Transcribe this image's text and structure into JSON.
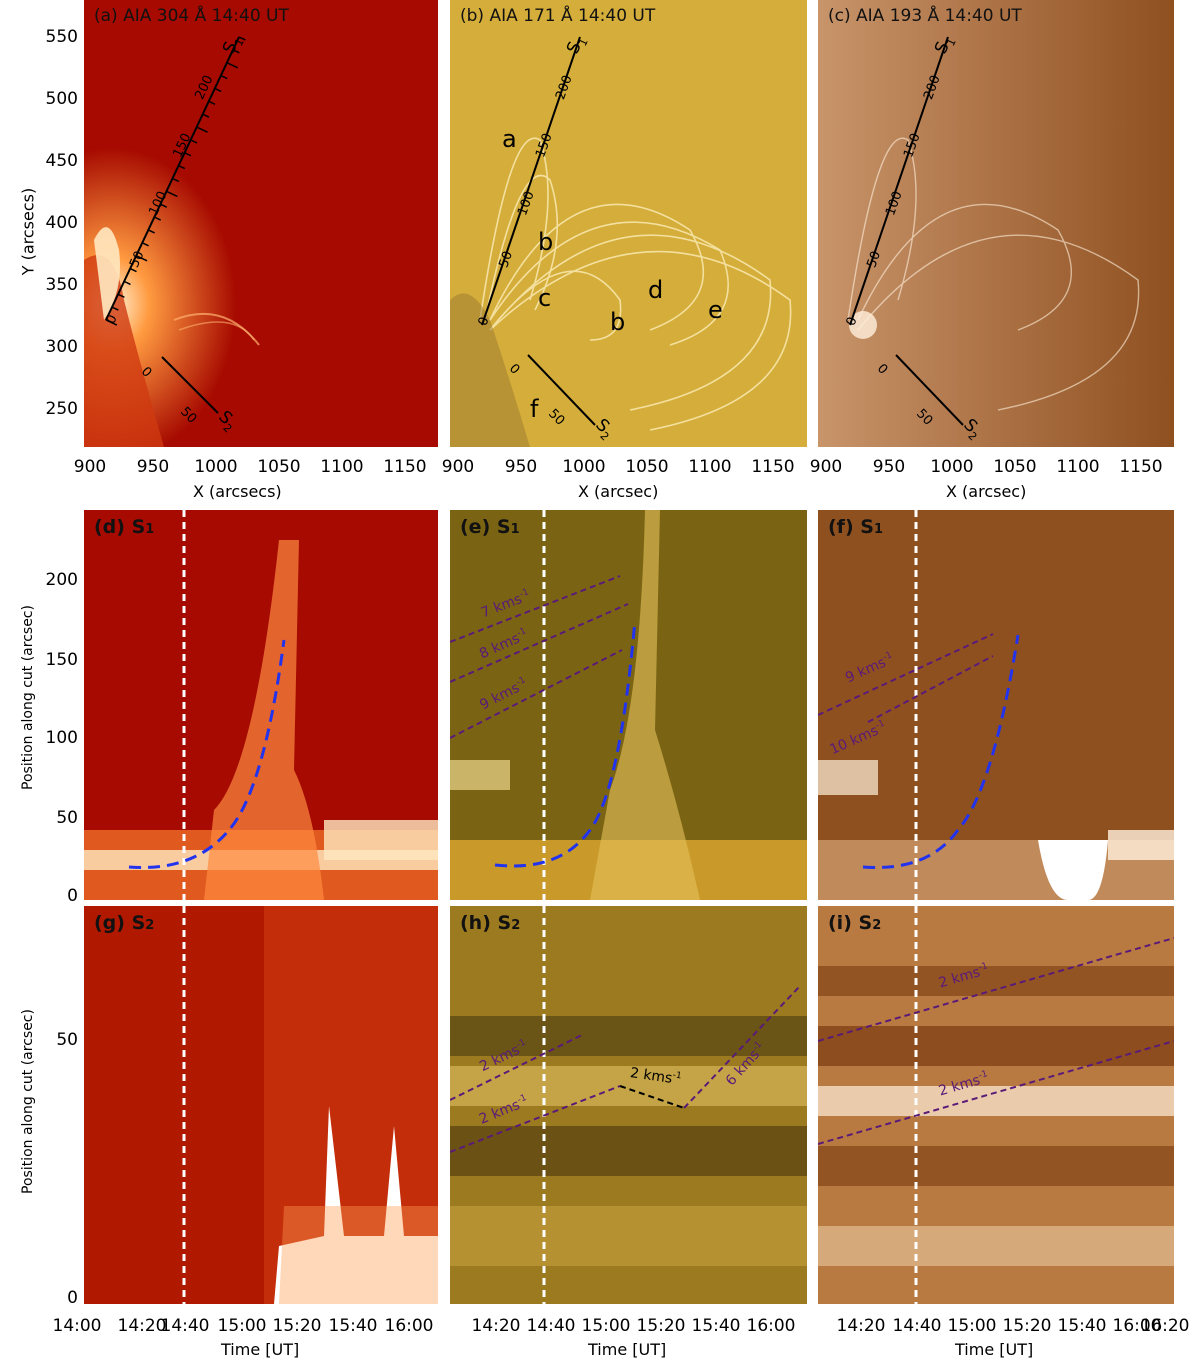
{
  "top_row": {
    "panels": [
      {
        "label": "(a) AIA 304 Å 14:40 UT",
        "cut1": "S",
        "cut1_sub": "1",
        "cut2": "S",
        "cut2_sub": "2"
      },
      {
        "label": "(b) AIA 171 Å 14:40 UT",
        "cut1": "S",
        "cut1_sub": "1",
        "cut2": "S",
        "cut2_sub": "2",
        "loop_labels": [
          "a",
          "b",
          "c",
          "b",
          "d",
          "e",
          "f"
        ]
      },
      {
        "label": "(c) AIA 193 Å 14:40 UT",
        "cut1": "S",
        "cut1_sub": "1",
        "cut2": "S",
        "cut2_sub": "2"
      }
    ],
    "s1_ticks": [
      "0",
      "50",
      "100",
      "150",
      "200"
    ],
    "s2_ticks": [
      "0",
      "50"
    ],
    "y_ticks": [
      "550",
      "500",
      "450",
      "400",
      "350",
      "300",
      "250"
    ],
    "y_title": "Y (arcsecs)",
    "x_ticks": [
      "900",
      "950",
      "1000",
      "1050",
      "1100",
      "1150"
    ],
    "x_titles": [
      "X (arcsecs)",
      "X (arcsec)",
      "X (arcsec)"
    ]
  },
  "middle_row": {
    "labels": [
      "(d) S",
      "(e) S",
      "(f) S"
    ],
    "sub": "1",
    "y_ticks": [
      "200",
      "150",
      "100",
      "50",
      "0"
    ],
    "y_title": "Position along cut (arcsec)",
    "speeds_e": [
      "7 kms",
      "8 kms",
      "9 kms"
    ],
    "speeds_f": [
      "9 kms",
      "10 kms"
    ],
    "speed_sup": "-1"
  },
  "bottom_row": {
    "labels": [
      "(g) S",
      "(h) S",
      "(i) S"
    ],
    "sub": "2",
    "y_ticks": [
      "50",
      "0"
    ],
    "y_title": "Position along cut (arcsec)",
    "speeds_h": [
      "2 kms",
      "2 kms",
      "2 kms",
      "6 kms"
    ],
    "speeds_i": [
      "2 kms",
      "2 kms"
    ],
    "x_ticks_g": [
      "14:00",
      "14:20",
      "14:40",
      "15:00",
      "15:20",
      "15:40",
      "16:00"
    ],
    "x_ticks_h": [
      "14:20",
      "14:40",
      "15:00",
      "15:20",
      "15:40",
      "16:00"
    ],
    "x_ticks_i": [
      "14:20",
      "14:40",
      "15:00",
      "15:20",
      "15:40",
      "16:00",
      "16:20"
    ],
    "x_title": "Time [UT]"
  },
  "colors": {
    "aia304_bg": "#a60a00",
    "aia304_bright": "#ffe6b0",
    "aia171_bg": "#d4ad3a",
    "aia171_bright": "#fff2c0",
    "aia193_bg": "#8f5020",
    "aia193_bright": "#fff0dc",
    "fit_blue": "#2233ee",
    "speed_purple": "#5a1a78",
    "marker_white": "#ffffff"
  }
}
